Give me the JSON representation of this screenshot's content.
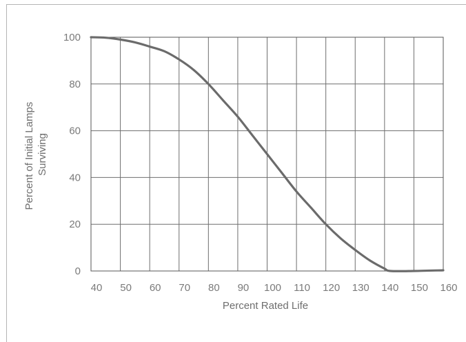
{
  "chart_data": {
    "type": "line",
    "title": "",
    "xlabel": "Percent Rated Life",
    "ylabel_lines": [
      "Percent of Initial Lamps",
      "Surviving"
    ],
    "xlim": [
      40,
      160
    ],
    "ylim": [
      0,
      100
    ],
    "x_ticks": [
      "40",
      "50",
      "60",
      "70",
      "80",
      "90",
      "100",
      "110",
      "120",
      "130",
      "140",
      "150",
      "160"
    ],
    "y_ticks": [
      "100",
      "80",
      "60",
      "40",
      "20",
      "0"
    ],
    "grid": true,
    "series": [
      {
        "color": "#6b6b6b",
        "x": [
          40,
          45,
          50,
          55,
          60,
          65,
          70,
          75,
          80,
          85,
          90,
          95,
          100,
          105,
          110,
          115,
          120,
          125,
          130,
          135,
          140,
          142,
          150,
          160
        ],
        "y": [
          100,
          99.8,
          99,
          97.8,
          96,
          94,
          90.5,
          86,
          80,
          73,
          66,
          58,
          50,
          42,
          34,
          27,
          20,
          14,
          9,
          4.5,
          1,
          0,
          0,
          0.3
        ]
      }
    ]
  }
}
